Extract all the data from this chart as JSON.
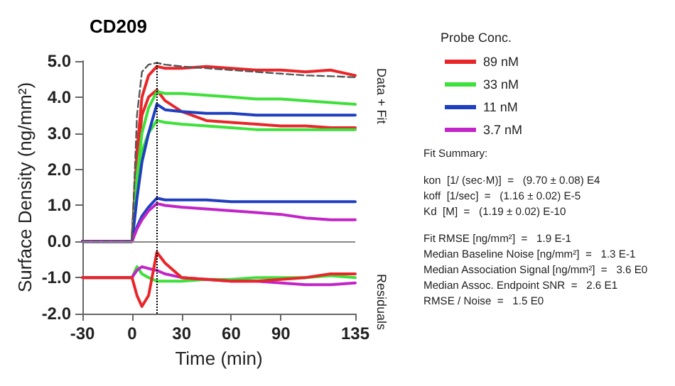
{
  "chart_data": {
    "type": "line",
    "title": "CD209",
    "xlabel": "Time (min)",
    "ylabel": "Surface Density (ng/mm²)",
    "legend_title": "Probe Conc.",
    "x": [
      -30,
      -5,
      0,
      3,
      6,
      10,
      15,
      20,
      30,
      45,
      60,
      75,
      90,
      105,
      120,
      135
    ],
    "series": [
      {
        "name": "89 nM",
        "color": "#e8262a",
        "values": [
          0,
          0,
          0,
          2.5,
          4.0,
          4.6,
          4.85,
          4.8,
          4.8,
          4.85,
          4.8,
          4.75,
          4.75,
          4.7,
          4.75,
          4.6
        ]
      },
      {
        "color": "#e8262a",
        "values": [
          0,
          0,
          0,
          2.2,
          3.5,
          4.0,
          4.2,
          3.9,
          3.6,
          3.35,
          3.3,
          3.25,
          3.2,
          3.2,
          3.15,
          3.15
        ]
      },
      {
        "name": "33 nM",
        "color": "#3ee03a",
        "values": [
          0,
          0,
          0,
          1.8,
          3.0,
          3.7,
          4.15,
          4.1,
          4.1,
          4.05,
          4.0,
          3.95,
          3.95,
          3.9,
          3.85,
          3.8
        ]
      },
      {
        "color": "#3ee03a",
        "values": [
          0,
          0,
          0,
          1.5,
          2.5,
          3.0,
          3.35,
          3.3,
          3.25,
          3.2,
          3.15,
          3.1,
          3.1,
          3.1,
          3.1,
          3.1
        ]
      },
      {
        "name": "11 nM",
        "color": "#1f3fbf",
        "values": [
          0,
          0,
          0,
          1.2,
          2.2,
          3.0,
          3.8,
          3.65,
          3.6,
          3.55,
          3.55,
          3.5,
          3.5,
          3.5,
          3.5,
          3.5
        ]
      },
      {
        "color": "#1f3fbf",
        "values": [
          0,
          0,
          0,
          0.4,
          0.7,
          0.95,
          1.2,
          1.15,
          1.15,
          1.15,
          1.1,
          1.1,
          1.1,
          1.1,
          1.1,
          1.1
        ]
      },
      {
        "name": "3.7 nM",
        "color": "#c224c8",
        "values": [
          0,
          0,
          0,
          0.35,
          0.6,
          0.85,
          1.05,
          1.0,
          0.95,
          0.9,
          0.85,
          0.8,
          0.75,
          0.65,
          0.6,
          0.6
        ]
      },
      {
        "color": "#555555",
        "line_style": "dashed",
        "values": [
          0,
          0,
          0,
          3.5,
          4.7,
          4.9,
          4.95,
          4.9,
          4.85,
          4.8,
          4.75,
          4.7,
          4.65,
          4.6,
          4.58,
          4.55
        ]
      },
      {
        "color": "#3ee03a",
        "values": [
          -1,
          -1,
          -1,
          -0.7,
          -0.9,
          -1.0,
          -1.1,
          -1.1,
          -1.1,
          -1.05,
          -1.05,
          -1.0,
          -1.0,
          -1.0,
          -0.95,
          -1.0
        ]
      },
      {
        "color": "#c224c8",
        "values": [
          -1,
          -1,
          -1,
          -0.8,
          -0.7,
          -0.75,
          -0.8,
          -0.9,
          -1.0,
          -1.05,
          -1.1,
          -1.1,
          -1.15,
          -1.2,
          -1.2,
          -1.15
        ]
      },
      {
        "color": "#e8262a",
        "values": [
          -1,
          -1,
          -1,
          -1.5,
          -1.8,
          -1.5,
          -0.3,
          -0.6,
          -1.0,
          -1.05,
          -1.1,
          -1.1,
          -1.05,
          -1.0,
          -0.9,
          -0.9
        ]
      }
    ],
    "xlim": [
      -30,
      135
    ],
    "xticks": [
      -30,
      0,
      30,
      60,
      90,
      135
    ],
    "ylim": [
      -2,
      5
    ],
    "yticks": [
      {
        "value": -2,
        "label": "-2.0"
      },
      {
        "value": -1,
        "label": "-1.0"
      },
      {
        "value": 0,
        "label": "0.0"
      },
      {
        "value": 1,
        "label": "1.0"
      },
      {
        "value": 2,
        "label": "2.0"
      },
      {
        "value": 3,
        "label": "3.0"
      },
      {
        "value": 4,
        "label": "4.0"
      },
      {
        "value": 5,
        "label": "5.0"
      }
    ],
    "ref_lines": [
      {
        "axis": "y",
        "value": 0,
        "color": "#888888",
        "line_style": "solid"
      },
      {
        "axis": "x",
        "value": 15,
        "color": "#000000",
        "line_style": "dotted"
      }
    ],
    "grid": false,
    "legend": "right",
    "marker": "none",
    "line_style": "solid",
    "annotations": [
      "Data + Fit",
      "Residuals",
      "Fit Summary:",
      "kon  [1/ (sec·M)]  =   (9.70 ± 0.08) E4",
      "koff  [1/sec]  =   (1.16 ± 0.02) E-5",
      "Kd  [M]  =   (1.19 ± 0.02) E-10",
      "Fit RMSE [ng/mm²]  =   1.9 E-1",
      "Median Baseline Noise [ng/mm²]  =   1.3 E-1",
      "Median Association Signal [ng/mm²]  =   3.6 E0",
      "Median Assoc. Endpoint SNR  =   2.6 E1",
      "RMSE / Noise  =   1.5 E0"
    ]
  }
}
